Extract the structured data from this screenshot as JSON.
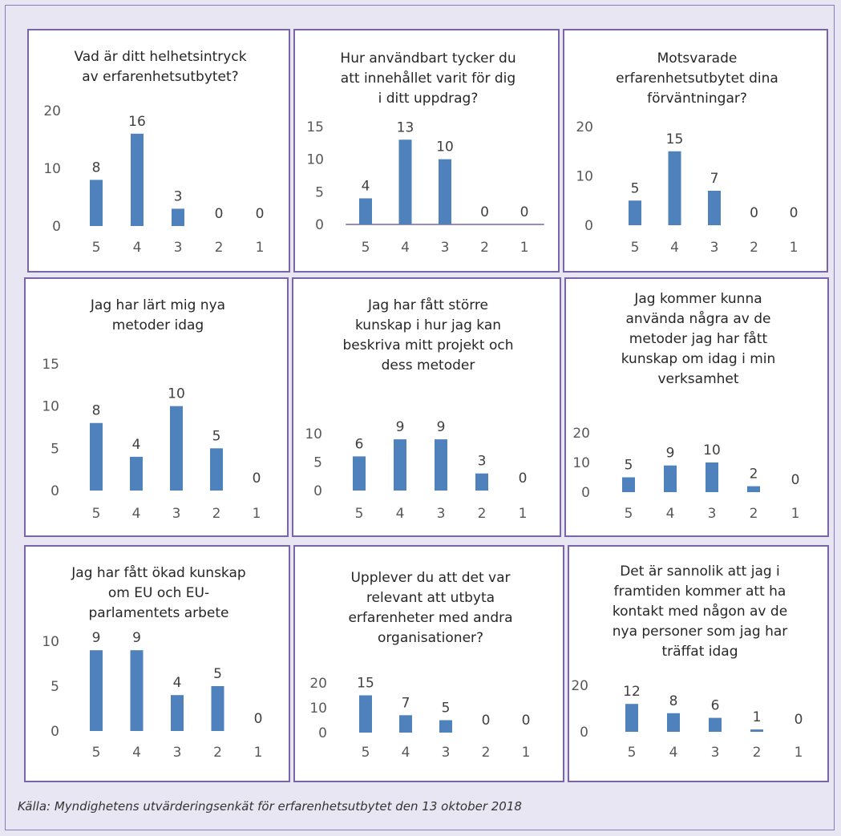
{
  "source_caption": "Källa: Myndighetens utvärderingsenkät för erfarenhetsutbytet den 13 oktober 2018",
  "colors": {
    "bar": "#4f81bd",
    "border": "#7b64a8",
    "background": "#e8e6f3"
  },
  "chart_data": [
    {
      "type": "bar",
      "title_lines": [
        "Vad är ditt helhetsintryck",
        "av erfarenhetsutbytet?"
      ],
      "categories": [
        "5",
        "4",
        "3",
        "2",
        "1"
      ],
      "values": [
        8,
        16,
        3,
        0,
        0
      ],
      "ylim": [
        0,
        20
      ],
      "yticks": [
        0,
        10,
        20
      ],
      "axis_line": false
    },
    {
      "type": "bar",
      "title_lines": [
        "Hur användbart tycker du",
        "att innehållet varit för dig",
        "i ditt uppdrag?"
      ],
      "categories": [
        "5",
        "4",
        "3",
        "2",
        "1"
      ],
      "values": [
        4,
        13,
        10,
        0,
        0
      ],
      "ylim": [
        0,
        15
      ],
      "yticks": [
        0,
        5,
        10,
        15
      ],
      "axis_line": true
    },
    {
      "type": "bar",
      "title_lines": [
        "Motsvarade",
        "erfarenhetsutbytet dina",
        "förväntningar?"
      ],
      "categories": [
        "5",
        "4",
        "3",
        "2",
        "1"
      ],
      "values": [
        5,
        15,
        7,
        0,
        0
      ],
      "ylim": [
        0,
        20
      ],
      "yticks": [
        0,
        10,
        20
      ],
      "axis_line": false
    },
    {
      "type": "bar",
      "title_lines": [
        "Jag har lärt mig nya",
        "metoder idag"
      ],
      "categories": [
        "5",
        "4",
        "3",
        "2",
        "1"
      ],
      "values": [
        8,
        4,
        10,
        5,
        0
      ],
      "ylim": [
        0,
        15
      ],
      "yticks": [
        0,
        5,
        10,
        15
      ],
      "axis_line": false
    },
    {
      "type": "bar",
      "title_lines": [
        "Jag har fått större",
        "kunskap i hur jag kan",
        "beskriva mitt projekt och",
        "dess metoder"
      ],
      "categories": [
        "5",
        "4",
        "3",
        "2",
        "1"
      ],
      "values": [
        6,
        9,
        9,
        3,
        0
      ],
      "ylim": [
        0,
        10
      ],
      "yticks": [
        0,
        5,
        10
      ],
      "axis_line": false
    },
    {
      "type": "bar",
      "title_lines": [
        "Jag kommer kunna",
        "använda några av de",
        "metoder jag har fått",
        "kunskap om idag i min",
        "verksamhet"
      ],
      "categories": [
        "5",
        "4",
        "3",
        "2",
        "1"
      ],
      "values": [
        5,
        9,
        10,
        2,
        0
      ],
      "ylim": [
        0,
        20
      ],
      "yticks": [
        0,
        10,
        20
      ],
      "axis_line": false
    },
    {
      "type": "bar",
      "title_lines": [
        "Jag har fått ökad kunskap",
        "om EU och EU-",
        "parlamentets arbete"
      ],
      "categories": [
        "5",
        "4",
        "3",
        "2",
        "1"
      ],
      "values": [
        9,
        9,
        4,
        5,
        0
      ],
      "ylim": [
        0,
        10
      ],
      "yticks": [
        0,
        5,
        10
      ],
      "axis_line": false
    },
    {
      "type": "bar",
      "title_lines": [
        "Upplever du att det var",
        "relevant att utbyta",
        "erfarenheter med andra",
        "organisationer?"
      ],
      "categories": [
        "5",
        "4",
        "3",
        "2",
        "1"
      ],
      "values": [
        15,
        7,
        5,
        0,
        0
      ],
      "ylim": [
        0,
        20
      ],
      "yticks": [
        0,
        10,
        20
      ],
      "axis_line": false
    },
    {
      "type": "bar",
      "title_lines": [
        "Det är sannolik att jag i",
        "framtiden kommer att ha",
        "kontakt med någon av de",
        "nya personer som jag har",
        "träffat idag"
      ],
      "categories": [
        "5",
        "4",
        "3",
        "2",
        "1"
      ],
      "values": [
        12,
        8,
        6,
        1,
        0
      ],
      "ylim": [
        0,
        20
      ],
      "yticks": [
        0,
        20
      ],
      "axis_line": false
    }
  ]
}
